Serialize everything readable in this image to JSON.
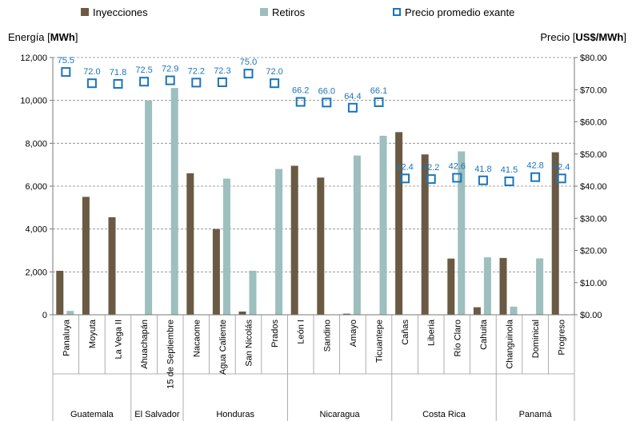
{
  "chart_data": {
    "type": "bar",
    "title": "",
    "legend": {
      "placement": "top",
      "items": [
        {
          "name": "Inyecciones",
          "color": "#6b5a43",
          "symbol": "square"
        },
        {
          "name": "Retiros",
          "color": "#9dbfbe",
          "symbol": "square"
        },
        {
          "name": "Precio promedio exante",
          "color": "#1a75bb",
          "symbol": "hollow-square"
        }
      ]
    },
    "y_left": {
      "label_prefix": "Energía [",
      "label_bold": "MWh",
      "label_suffix": "]",
      "min": 0,
      "max": 12000,
      "ticks": [
        "0",
        "2,000",
        "4,000",
        "6,000",
        "8,000",
        "10,000",
        "12,000"
      ],
      "tick_values": [
        0,
        2000,
        4000,
        6000,
        8000,
        10000,
        12000
      ]
    },
    "y_right": {
      "label_prefix": "Precio [",
      "label_bold": "US$/MWh",
      "label_suffix": "]",
      "min": 0,
      "max": 80,
      "ticks": [
        "$0.00",
        "$10.00",
        "$20.00",
        "$30.00",
        "$40.00",
        "$50.00",
        "$60.00",
        "$70.00",
        "$80.00"
      ],
      "tick_values": [
        0,
        10,
        20,
        30,
        40,
        50,
        60,
        70,
        80
      ]
    },
    "grid": true,
    "categories": [
      "Panaluya",
      "Moyuta",
      "La Vega II",
      "Ahuachapán",
      "15 de Septiembre",
      "Nacaome",
      "Agua Caliente",
      "San Nicolás",
      "Prados",
      "León I",
      "Sandino",
      "Amayo",
      "Ticuantepe",
      "Cañas",
      "Liberia",
      "Río Claro",
      "Cahuita",
      "Changuinola",
      "Dominical",
      "Progreso"
    ],
    "groups": [
      {
        "name": "Guatemala",
        "count": 3
      },
      {
        "name": "El Salvador",
        "count": 2
      },
      {
        "name": "Honduras",
        "count": 4
      },
      {
        "name": "Nicaragua",
        "count": 4
      },
      {
        "name": "Costa Rica",
        "count": 4
      },
      {
        "name": "Panamá",
        "count": 3
      }
    ],
    "series": [
      {
        "name": "Inyecciones",
        "axis": "left",
        "color": "#6b5a43",
        "values": [
          2050,
          5500,
          4550,
          0,
          0,
          6600,
          4000,
          150,
          0,
          6950,
          6400,
          50,
          0,
          8520,
          7480,
          2620,
          350,
          2650,
          0,
          7580
        ]
      },
      {
        "name": "Retiros",
        "axis": "left",
        "color": "#9dbfbe",
        "values": [
          180,
          0,
          0,
          10000,
          10580,
          0,
          6350,
          2050,
          6800,
          0,
          0,
          7430,
          8350,
          0,
          0,
          7620,
          2680,
          380,
          2630,
          0
        ]
      },
      {
        "name": "Precio promedio exante",
        "axis": "right",
        "color": "#1a75bb",
        "values": [
          75.5,
          72.0,
          71.8,
          72.5,
          72.9,
          72.2,
          72.3,
          75.0,
          72.0,
          66.2,
          66.0,
          64.4,
          66.1,
          42.4,
          42.2,
          42.6,
          41.8,
          41.5,
          42.8,
          42.4
        ],
        "labels": [
          "75.5",
          "72.0",
          "71.8",
          "72.5",
          "72.9",
          "72.2",
          "72.3",
          "75.0",
          "72.0",
          "66.2",
          "66.0",
          "64.4",
          "66.1",
          "42.4",
          "42.2",
          "42.6",
          "41.8",
          "41.5",
          "42.8",
          "42.4"
        ]
      }
    ]
  }
}
